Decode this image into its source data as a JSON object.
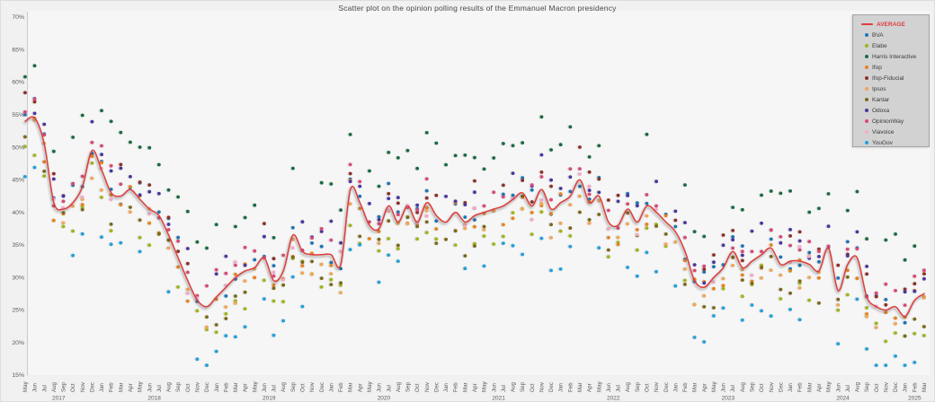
{
  "chart_data": {
    "type": "scatter",
    "title": "Scatter plot on the opinion polling results of the Emmanuel Macron presidency",
    "background": "#f0f1f0",
    "plot_background": "#f5f6f5",
    "grid": "off",
    "legend_position": "top-right",
    "y_axis": {
      "min": 15,
      "max": 70,
      "tick_step": 5,
      "tick_labels": [
        "15%",
        "20%",
        "25%",
        "30%",
        "35%",
        "40%",
        "45%",
        "50%",
        "55%",
        "60%",
        "65%",
        "70%"
      ]
    },
    "x_axis": {
      "start": "May 2017",
      "end": "Mar 2025",
      "tick_unit": "month",
      "tick_rotation": 90,
      "year_labels": [
        "2017",
        "2018",
        "2019",
        "2020",
        "2021",
        "2022",
        "2023",
        "2024",
        "2025"
      ]
    },
    "average_series": {
      "name": "AVERAGE",
      "color": "#e03c3c",
      "points": [
        [
          "May 2017",
          54
        ],
        [
          "Jun 2017",
          54.5
        ],
        [
          "Jul 2017",
          50.5
        ],
        [
          "Aug 2017",
          41.5
        ],
        [
          "Sep 2017",
          40.5
        ],
        [
          "Oct 2017",
          41.5
        ],
        [
          "Nov 2017",
          44
        ],
        [
          "Dec 2017",
          49.5
        ],
        [
          "Jan 2018",
          46.5
        ],
        [
          "Feb 2018",
          43
        ],
        [
          "Mar 2018",
          42.5
        ],
        [
          "Apr 2018",
          43.5
        ],
        [
          "May 2018",
          42
        ],
        [
          "Jun 2018",
          40.5
        ],
        [
          "Jul 2018",
          39.5
        ],
        [
          "Aug 2018",
          36.5
        ],
        [
          "Sep 2018",
          33
        ],
        [
          "Oct 2018",
          29.5
        ],
        [
          "Nov 2018",
          26.5
        ],
        [
          "Dec 2018",
          25.5
        ],
        [
          "Jan 2019",
          27
        ],
        [
          "Feb 2019",
          28.5
        ],
        [
          "Mar 2019",
          30
        ],
        [
          "Apr 2019",
          31
        ],
        [
          "May 2019",
          31.5
        ],
        [
          "Jun 2019",
          33
        ],
        [
          "Jul 2019",
          29.5
        ],
        [
          "Aug 2019",
          31
        ],
        [
          "Sep 2019",
          36.5
        ],
        [
          "Oct 2019",
          34
        ],
        [
          "Nov 2019",
          33.5
        ],
        [
          "Dec 2019",
          33.5
        ],
        [
          "Jan 2020",
          33.5
        ],
        [
          "Feb 2020",
          32
        ],
        [
          "Mar 2020",
          43.5
        ],
        [
          "Apr 2020",
          41.5
        ],
        [
          "May 2020",
          38
        ],
        [
          "Jun 2020",
          37.5
        ],
        [
          "Jul 2020",
          41
        ],
        [
          "Aug 2020",
          38.5
        ],
        [
          "Sep 2020",
          41
        ],
        [
          "Oct 2020",
          38.5
        ],
        [
          "Nov 2020",
          41.5
        ],
        [
          "Dec 2020",
          39.5
        ],
        [
          "Jan 2021",
          38.5
        ],
        [
          "Feb 2021",
          40
        ],
        [
          "Mar 2021",
          38.5
        ],
        [
          "Apr 2021",
          39.5
        ],
        [
          "May 2021",
          40
        ],
        [
          "Jun 2021",
          40.5
        ],
        [
          "Jul 2021",
          41
        ],
        [
          "Aug 2021",
          42
        ],
        [
          "Sep 2021",
          43
        ],
        [
          "Oct 2021",
          41
        ],
        [
          "Nov 2021",
          43.5
        ],
        [
          "Dec 2021",
          40.5
        ],
        [
          "Jan 2022",
          41.5
        ],
        [
          "Feb 2022",
          42.5
        ],
        [
          "Mar 2022",
          45
        ],
        [
          "Apr 2022",
          41.5
        ],
        [
          "May 2022",
          42.5
        ],
        [
          "Jun 2022",
          38.5
        ],
        [
          "Jul 2022",
          38
        ],
        [
          "Aug 2022",
          40.5
        ],
        [
          "Sep 2022",
          38.5
        ],
        [
          "Oct 2022",
          41
        ],
        [
          "Nov 2022",
          40
        ],
        [
          "Dec 2022",
          38.5
        ],
        [
          "Jan 2023",
          37
        ],
        [
          "Feb 2023",
          34
        ],
        [
          "Mar 2023",
          29.5
        ],
        [
          "Apr 2023",
          28.5
        ],
        [
          "May 2023",
          30
        ],
        [
          "Jun 2023",
          31.5
        ],
        [
          "Jul 2023",
          34
        ],
        [
          "Aug 2023",
          31.5
        ],
        [
          "Sep 2023",
          32.5
        ],
        [
          "Oct 2023",
          33.5
        ],
        [
          "Nov 2023",
          34.5
        ],
        [
          "Dec 2023",
          32
        ],
        [
          "Jan 2024",
          32.5
        ],
        [
          "Feb 2024",
          32.5
        ],
        [
          "Mar 2024",
          32
        ],
        [
          "Apr 2024",
          31
        ],
        [
          "May 2024",
          34.5
        ],
        [
          "Jun 2024",
          28
        ],
        [
          "Jul 2024",
          32
        ],
        [
          "Aug 2024",
          33
        ],
        [
          "Sep 2024",
          27
        ],
        [
          "Oct 2024",
          25.5
        ],
        [
          "Nov 2024",
          25
        ],
        [
          "Dec 2024",
          25.5
        ],
        [
          "Jan 2025",
          24
        ],
        [
          "Feb 2025",
          26.5
        ],
        [
          "Mar 2025",
          27.5
        ]
      ]
    },
    "pollsters": [
      {
        "name": "BVA",
        "color": "#1f74b4",
        "bias": 1,
        "density": 0.8
      },
      {
        "name": "Elabe",
        "color": "#a3b31a",
        "bias": -4,
        "density": 0.78
      },
      {
        "name": "Harris Interactive",
        "color": "#1a6b40",
        "bias": 9,
        "density": 0.75
      },
      {
        "name": "Ifop",
        "color": "#e8821e",
        "bias": -1,
        "density": 0.8
      },
      {
        "name": "Ifop-Fiducial",
        "color": "#8e2f28",
        "bias": 3,
        "density": 0.55
      },
      {
        "name": "Ipsos",
        "color": "#f2a654",
        "bias": -2,
        "density": 0.7
      },
      {
        "name": "Kantar",
        "color": "#7a681a",
        "bias": -3,
        "density": 0.7
      },
      {
        "name": "Odoxa",
        "color": "#4a36a0",
        "bias": 3,
        "density": 0.8
      },
      {
        "name": "OpinionWay",
        "color": "#d94878",
        "bias": 2,
        "density": 0.8
      },
      {
        "name": "Viavoice",
        "color": "#f7a8cb",
        "bias": 0,
        "density": 0.45
      },
      {
        "name": "YouGov",
        "color": "#22a0dd",
        "bias": -8,
        "density": 0.7
      }
    ],
    "scatter_jitter": 2.5,
    "value_clamp": [
      16.5,
      66.5
    ]
  }
}
